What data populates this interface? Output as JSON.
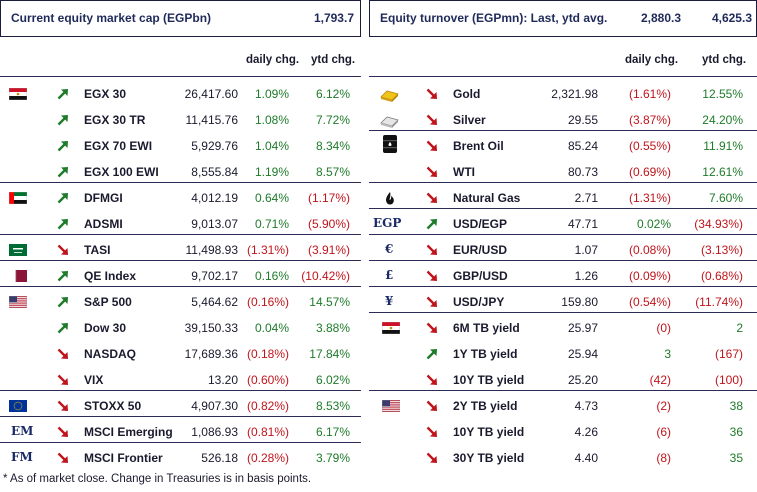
{
  "left": {
    "header": {
      "title": "Current equity market cap (EGPbn)",
      "value": "1,793.7"
    },
    "col_headers": {
      "daily": "daily chg.",
      "ytd": "ytd chg."
    },
    "rows": [
      {
        "name": "EGX 30",
        "value": "26,417.60",
        "daily": "1.09%",
        "ytd": "6.12%",
        "dir": "up"
      },
      {
        "name": "EGX 30 TR",
        "value": "11,415.76",
        "daily": "1.08%",
        "ytd": "7.72%",
        "dir": "up"
      },
      {
        "name": "EGX 70 EWI",
        "value": "5,929.76",
        "daily": "1.04%",
        "ytd": "8.34%",
        "dir": "up"
      },
      {
        "name": "EGX 100 EWI",
        "value": "8,555.84",
        "daily": "1.19%",
        "ytd": "8.57%",
        "dir": "up"
      },
      {
        "name": "DFMGI",
        "value": "4,012.19",
        "daily": "0.64%",
        "ytd": "(1.17%)",
        "dir": "up"
      },
      {
        "name": "ADSMI",
        "value": "9,013.07",
        "daily": "0.71%",
        "ytd": "(5.90%)",
        "dir": "up"
      },
      {
        "name": "TASI",
        "value": "11,498.93",
        "daily": "(1.31%)",
        "ytd": "(3.91%)",
        "dir": "down"
      },
      {
        "name": "QE Index",
        "value": "9,702.17",
        "daily": "0.16%",
        "ytd": "(10.42%)",
        "dir": "up"
      },
      {
        "name": "S&P 500",
        "value": "5,464.62",
        "daily": "(0.16%)",
        "ytd": "14.57%",
        "dir": "up"
      },
      {
        "name": "Dow 30",
        "value": "39,150.33",
        "daily": "0.04%",
        "ytd": "3.88%",
        "dir": "up"
      },
      {
        "name": "NASDAQ",
        "value": "17,689.36",
        "daily": "(0.18%)",
        "ytd": "17.84%",
        "dir": "down"
      },
      {
        "name": "VIX",
        "value": "13.20",
        "daily": "(0.60%)",
        "ytd": "6.02%",
        "dir": "down"
      },
      {
        "name": "STOXX 50",
        "value": "4,907.30",
        "daily": "(0.82%)",
        "ytd": "8.53%",
        "dir": "down"
      },
      {
        "name": "MSCI Emerging",
        "value": "1,086.93",
        "daily": "(0.81%)",
        "ytd": "6.17%",
        "dir": "down"
      },
      {
        "name": "MSCI Frontier",
        "value": "526.18",
        "daily": "(0.28%)",
        "ytd": "3.79%",
        "dir": "down"
      }
    ],
    "symbols": {
      "em": "EM",
      "fm": "FM"
    }
  },
  "right": {
    "header": {
      "title": "Equity turnover (EGPmn): Last, ytd avg.",
      "last": "2,880.3",
      "ytd_avg": "4,625.3"
    },
    "col_headers": {
      "daily": "daily chg.",
      "ytd": "ytd chg."
    },
    "rows": [
      {
        "name": "Gold",
        "value": "2,321.98",
        "daily": "(1.61%)",
        "ytd": "12.55%",
        "dir": "down"
      },
      {
        "name": "Silver",
        "value": "29.55",
        "daily": "(3.87%)",
        "ytd": "24.20%",
        "dir": "down"
      },
      {
        "name": "Brent Oil",
        "value": "85.24",
        "daily": "(0.55%)",
        "ytd": "11.91%",
        "dir": "down"
      },
      {
        "name": "WTI",
        "value": "80.73",
        "daily": "(0.69%)",
        "ytd": "12.61%",
        "dir": "down"
      },
      {
        "name": "Natural Gas",
        "value": "2.71",
        "daily": "(1.31%)",
        "ytd": "7.60%",
        "dir": "down"
      },
      {
        "name": "USD/EGP",
        "value": "47.71",
        "daily": "0.02%",
        "ytd": "(34.93%)",
        "dir": "up"
      },
      {
        "name": "EUR/USD",
        "value": "1.07",
        "daily": "(0.08%)",
        "ytd": "(3.13%)",
        "dir": "down"
      },
      {
        "name": "GBP/USD",
        "value": "1.26",
        "daily": "(0.09%)",
        "ytd": "(0.68%)",
        "dir": "down"
      },
      {
        "name": "USD/JPY",
        "value": "159.80",
        "daily": "(0.54%)",
        "ytd": "(11.74%)",
        "dir": "down"
      },
      {
        "name": "6M TB yield",
        "value": "25.97",
        "daily": "(0)",
        "ytd": "2",
        "dir": "down"
      },
      {
        "name": "1Y TB yield",
        "value": "25.94",
        "daily": "3",
        "ytd": "(167)",
        "dir": "up"
      },
      {
        "name": "10Y TB yield",
        "value": "25.20",
        "daily": "(42)",
        "ytd": "(100)",
        "dir": "down"
      },
      {
        "name": "2Y TB yield",
        "value": "4.73",
        "daily": "(2)",
        "ytd": "38",
        "dir": "down"
      },
      {
        "name": "10Y TB yield",
        "value": "4.26",
        "daily": "(6)",
        "ytd": "36",
        "dir": "down"
      },
      {
        "name": "30Y TB yield",
        "value": "4.40",
        "daily": "(8)",
        "ytd": "35",
        "dir": "down"
      }
    ],
    "symbols": {
      "egp": "EGP",
      "eur": "€",
      "gbp": "£",
      "jpy": "¥"
    }
  },
  "colors": {
    "positive": "#1e7b2a",
    "negative": "#c0141c",
    "arrow_up": "#1e7b2a",
    "arrow_down": "#c0141c",
    "navy": "#1f2a5a"
  },
  "footnote": "* As of market close. Change in Treasuries is in basis points."
}
